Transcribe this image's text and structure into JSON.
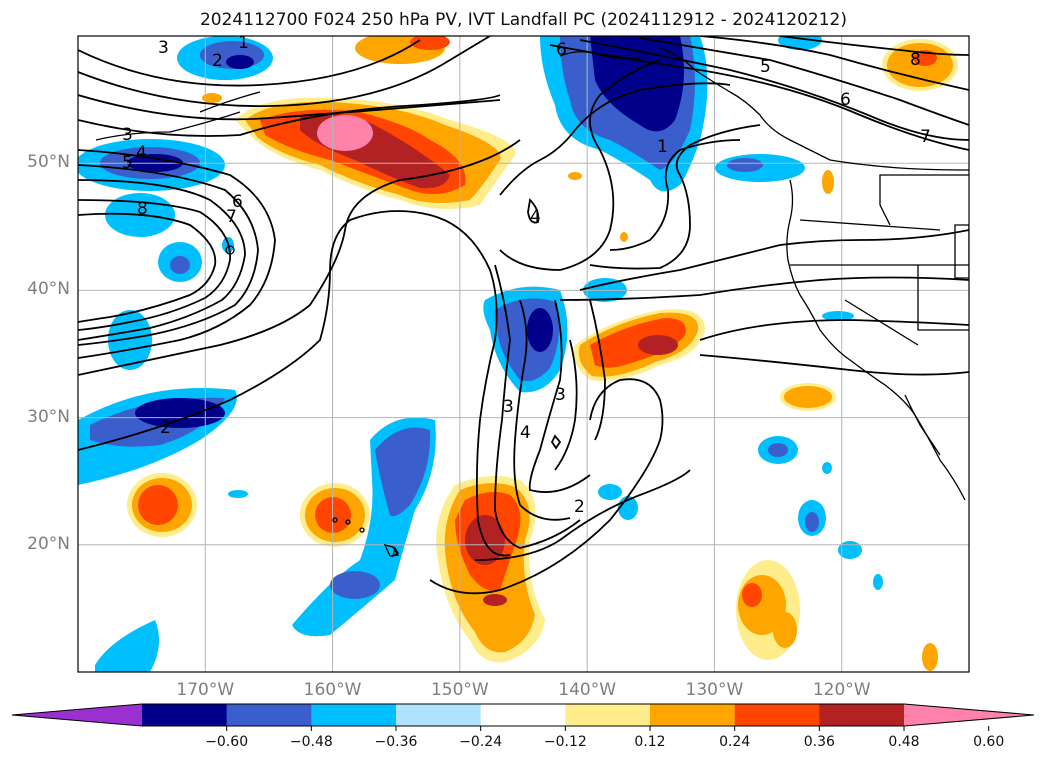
{
  "title": "2024112700 F024 250 hPa PV, IVT Landfall PC (2024112912 - 2024120212)",
  "map": {
    "projection": "PlateCarree",
    "extent": {
      "lon_min": -180,
      "lon_max": -110,
      "lat_min": 10,
      "lat_max": 60
    },
    "gridlines": true,
    "lat_labels": [
      "50°N",
      "40°N",
      "30°N",
      "20°N"
    ],
    "lat_values": [
      50,
      40,
      30,
      20
    ],
    "lon_labels": [
      "170°W",
      "160°W",
      "150°W",
      "140°W",
      "130°W",
      "120°W"
    ],
    "lon_values": [
      -170,
      -160,
      -150,
      -140,
      -130,
      -120
    ],
    "contour_labels": [
      "3",
      "2",
      "1",
      "3",
      "4",
      "5",
      "8",
      "6",
      "7",
      "4",
      "3",
      "4",
      "3",
      "2",
      "6",
      "5",
      "6",
      "7",
      "1",
      "8",
      "2"
    ]
  },
  "colorbar": {
    "ticks": [
      "−0.60",
      "−0.48",
      "−0.36",
      "−0.24",
      "−0.12",
      "0.12",
      "0.24",
      "0.36",
      "0.48",
      "0.60"
    ],
    "colors": [
      "#9b30d0",
      "#00008b",
      "#3a5fcd",
      "#00bfff",
      "#b0e2ff",
      "#ffffff",
      "#ffec8b",
      "#ffa500",
      "#ff4500",
      "#b22222",
      "#ff82ab"
    ],
    "extend": "both"
  }
}
